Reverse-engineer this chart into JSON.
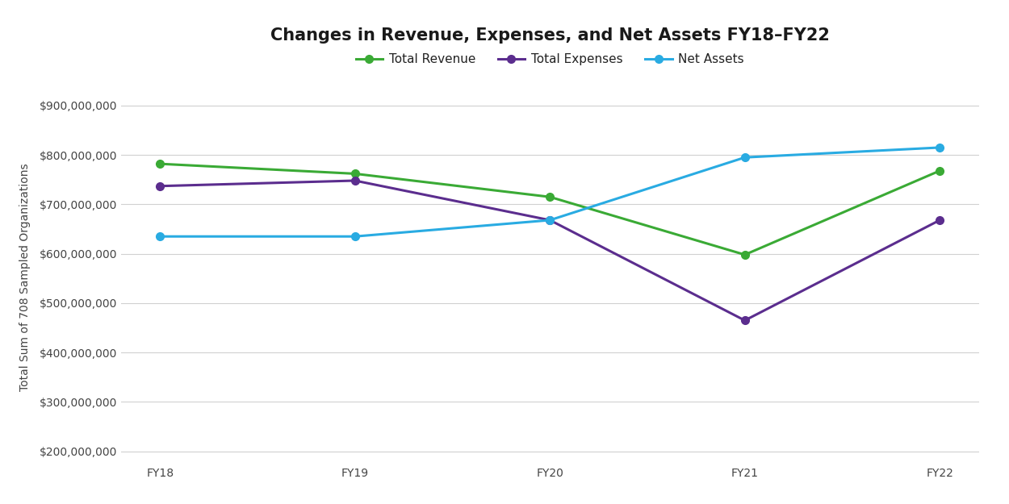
{
  "title": "Changes in Revenue, Expenses, and Net Assets FY18–FY22",
  "ylabel": "Total Sum of 708 Sampled Organizations",
  "x_labels": [
    "FY18",
    "FY19",
    "FY20",
    "FY21",
    "FY22"
  ],
  "total_revenue": [
    782000000,
    762000000,
    715000000,
    598000000,
    768000000
  ],
  "total_expenses": [
    737000000,
    748000000,
    668000000,
    465000000,
    668000000
  ],
  "net_assets": [
    635000000,
    635000000,
    668000000,
    795000000,
    815000000
  ],
  "revenue_color": "#3aaa35",
  "expenses_color": "#5b2d8e",
  "net_assets_color": "#29abe2",
  "line_width": 2.2,
  "marker_size": 7,
  "ylim_min": 175000000,
  "ylim_max": 930000000,
  "ytick_values": [
    200000000,
    300000000,
    400000000,
    500000000,
    600000000,
    700000000,
    800000000,
    900000000
  ],
  "grid_color": "#d0d0d0",
  "title_fontsize": 15,
  "label_fontsize": 10,
  "tick_fontsize": 10,
  "legend_fontsize": 11
}
